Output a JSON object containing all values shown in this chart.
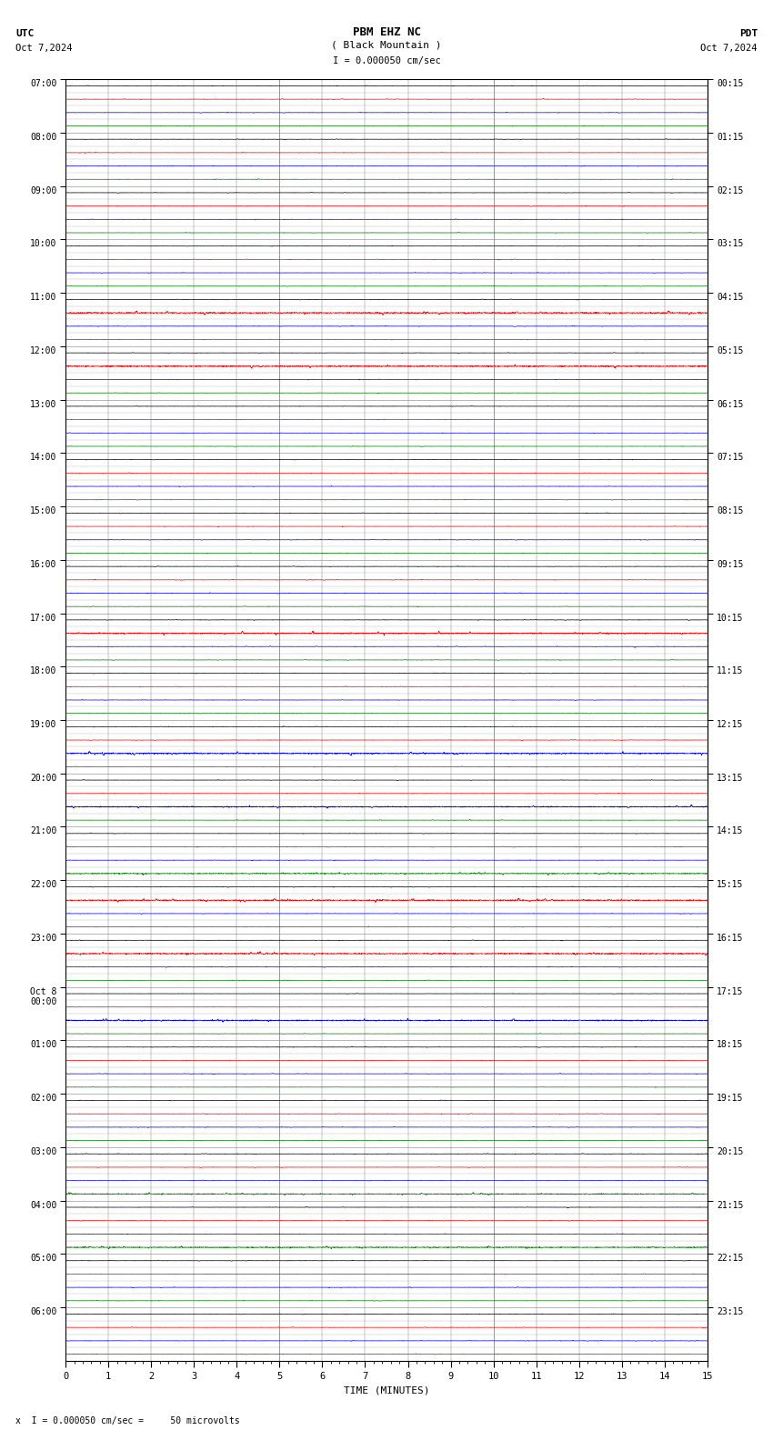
{
  "title_line1": "PBM EHZ NC",
  "title_line2": "( Black Mountain )",
  "scale_label": "I = 0.000050 cm/sec",
  "utc_label": "UTC",
  "utc_date": "Oct 7,2024",
  "pdt_label": "PDT",
  "pdt_date": "Oct 7,2024",
  "xlabel": "TIME (MINUTES)",
  "footer_note": "x  I = 0.000050 cm/sec =     50 microvolts",
  "xmin": 0,
  "xmax": 15,
  "left_hour_labels": [
    "07:00",
    "08:00",
    "09:00",
    "10:00",
    "11:00",
    "12:00",
    "13:00",
    "14:00",
    "15:00",
    "16:00",
    "17:00",
    "18:00",
    "19:00",
    "20:00",
    "21:00",
    "22:00",
    "23:00",
    "Oct 8\n00:00",
    "01:00",
    "02:00",
    "03:00",
    "04:00",
    "05:00",
    "06:00"
  ],
  "right_hour_labels": [
    "00:15",
    "01:15",
    "02:15",
    "03:15",
    "04:15",
    "05:15",
    "06:15",
    "07:15",
    "08:15",
    "09:15",
    "10:15",
    "11:15",
    "12:15",
    "13:15",
    "14:15",
    "15:15",
    "16:15",
    "17:15",
    "18:15",
    "19:15",
    "20:15",
    "21:15",
    "22:15",
    "23:15"
  ],
  "n_hours": 24,
  "trace_colors": [
    "black",
    "red",
    "blue",
    "green"
  ],
  "bg_color": "white",
  "grid_color": "#999999",
  "vgrid_color": "#888888",
  "n_minutes": 15,
  "high_amp_red_hours": [
    4,
    5,
    10,
    15,
    16
  ],
  "high_amp_blue_hours": [
    12,
    13,
    17
  ],
  "high_amp_green_hours": [
    14,
    20,
    21
  ]
}
